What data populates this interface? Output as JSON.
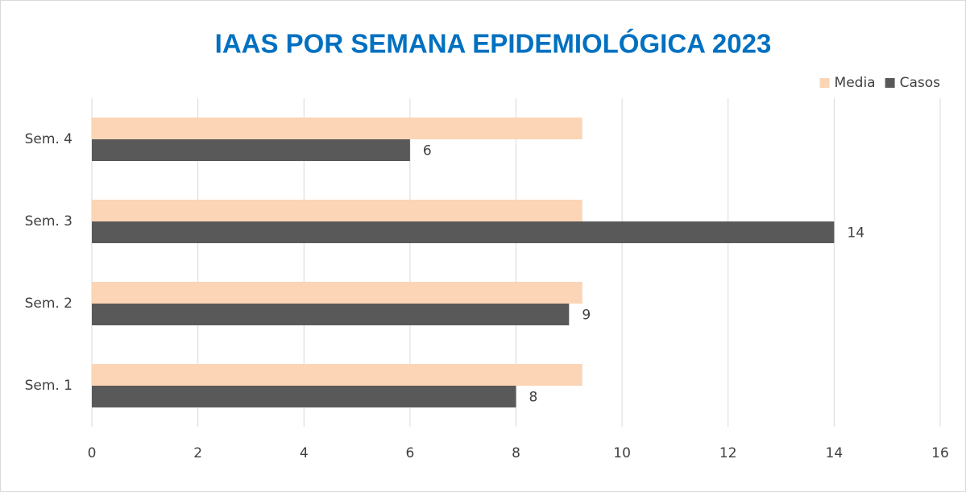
{
  "chart_data": {
    "type": "hbar",
    "title": "IAAS POR SEMANA EPIDEMIOLÓGICA 2023",
    "categories": [
      "Sem. 1",
      "Sem. 2",
      "Sem. 3",
      "Sem. 4"
    ],
    "series": [
      {
        "name": "Media",
        "color": "#fbd5b5",
        "values": [
          9.25,
          9.25,
          9.25,
          9.25
        ]
      },
      {
        "name": "Casos",
        "color": "#595959",
        "values": [
          8,
          9,
          14,
          6
        ],
        "data_labels": true
      }
    ],
    "xlim": [
      0,
      16
    ],
    "xticks": [
      0,
      2,
      4,
      6,
      8,
      10,
      12,
      14,
      16
    ],
    "grid": true,
    "legend": "top-right"
  }
}
